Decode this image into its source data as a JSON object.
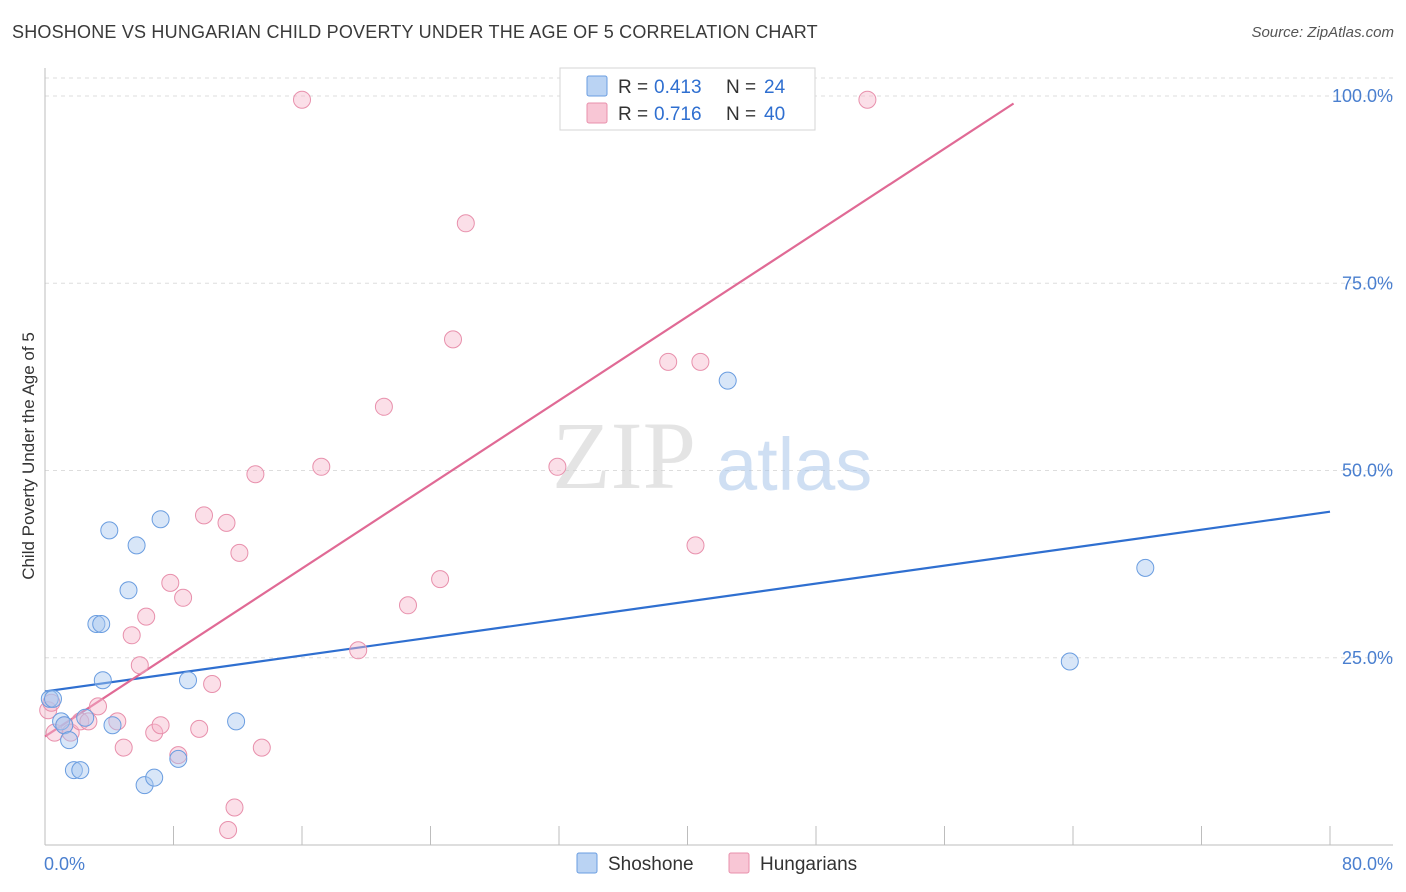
{
  "title": "SHOSHONE VS HUNGARIAN CHILD POVERTY UNDER THE AGE OF 5 CORRELATION CHART",
  "source": "Source: ZipAtlas.com",
  "watermark": {
    "part1": "ZIP",
    "part2": "atlas"
  },
  "colors": {
    "shoshone_fill": "#a9c8f0",
    "shoshone_stroke": "#6a9de0",
    "shoshone_line": "#2f6fd0",
    "hungarian_fill": "#f6b8cb",
    "hungarian_stroke": "#e890ac",
    "hungarian_line": "#e06a95",
    "tick_text": "#4a7fcf",
    "grid": "#dddddd"
  },
  "legend": {
    "rows": [
      {
        "r_label": "R =",
        "r_value": "0.413",
        "n_label": "N =",
        "n_value": "24"
      },
      {
        "r_label": "R =",
        "r_value": "0.716",
        "n_label": "N =",
        "n_value": "40"
      }
    ]
  },
  "chart_data": {
    "type": "scatter",
    "title": "SHOSHONE VS HUNGARIAN CHILD POVERTY UNDER THE AGE OF 5 CORRELATION CHART",
    "xlabel": "",
    "ylabel": "Child Poverty Under the Age of 5",
    "xlim": [
      0,
      80
    ],
    "ylim": [
      0,
      100
    ],
    "x_tick_labels": [
      "0.0%",
      "80.0%"
    ],
    "y_ticks": [
      25,
      50,
      75,
      100
    ],
    "y_tick_labels": [
      "25.0%",
      "50.0%",
      "75.0%",
      "100.0%"
    ],
    "grid": true,
    "legend_position": "top-center",
    "series": [
      {
        "name": "Shoshone",
        "r": 0.413,
        "n": 24,
        "trend": {
          "x1": 0,
          "y1": 20.5,
          "x2": 80,
          "y2": 44.5
        },
        "points": [
          [
            0.3,
            19.5
          ],
          [
            0.5,
            19.5
          ],
          [
            1.0,
            16.5
          ],
          [
            1.2,
            16.0
          ],
          [
            1.5,
            14.0
          ],
          [
            1.8,
            10.0
          ],
          [
            2.2,
            10.0
          ],
          [
            2.5,
            17.0
          ],
          [
            3.2,
            29.5
          ],
          [
            3.5,
            29.5
          ],
          [
            3.6,
            22.0
          ],
          [
            4.2,
            16.0
          ],
          [
            4.0,
            42.0
          ],
          [
            5.2,
            34.0
          ],
          [
            5.7,
            40.0
          ],
          [
            6.2,
            8.0
          ],
          [
            6.8,
            9.0
          ],
          [
            7.2,
            43.5
          ],
          [
            8.3,
            11.5
          ],
          [
            8.9,
            22.0
          ],
          [
            11.9,
            16.5
          ],
          [
            42.5,
            62.0
          ],
          [
            63.8,
            24.5
          ],
          [
            68.5,
            37.0
          ]
        ]
      },
      {
        "name": "Hungarians",
        "r": 0.716,
        "n": 40,
        "trend": {
          "x1": 0,
          "y1": 14.5,
          "x2": 60.3,
          "y2": 99.0
        },
        "points": [
          [
            0.2,
            18.0
          ],
          [
            0.6,
            15.0
          ],
          [
            1.2,
            16.0
          ],
          [
            1.6,
            15.0
          ],
          [
            2.2,
            16.5
          ],
          [
            2.7,
            16.5
          ],
          [
            3.3,
            18.5
          ],
          [
            4.5,
            16.5
          ],
          [
            4.9,
            13.0
          ],
          [
            5.4,
            28.0
          ],
          [
            5.9,
            24.0
          ],
          [
            6.3,
            30.5
          ],
          [
            6.8,
            15.0
          ],
          [
            7.2,
            16.0
          ],
          [
            7.8,
            35.0
          ],
          [
            8.6,
            33.0
          ],
          [
            8.3,
            12.0
          ],
          [
            9.6,
            15.5
          ],
          [
            9.9,
            44.0
          ],
          [
            10.4,
            21.5
          ],
          [
            11.3,
            43.0
          ],
          [
            11.4,
            2.0
          ],
          [
            11.8,
            5.0
          ],
          [
            12.1,
            39.0
          ],
          [
            13.1,
            49.5
          ],
          [
            13.5,
            13.0
          ],
          [
            16.0,
            99.5
          ],
          [
            17.2,
            50.5
          ],
          [
            19.5,
            26.0
          ],
          [
            21.1,
            58.5
          ],
          [
            22.6,
            32.0
          ],
          [
            24.6,
            35.5
          ],
          [
            25.4,
            67.5
          ],
          [
            26.2,
            83.0
          ],
          [
            31.9,
            50.5
          ],
          [
            38.8,
            64.5
          ],
          [
            40.5,
            40.0
          ],
          [
            40.8,
            64.5
          ],
          [
            51.2,
            99.5
          ],
          [
            0.4,
            19.0
          ]
        ]
      }
    ]
  }
}
